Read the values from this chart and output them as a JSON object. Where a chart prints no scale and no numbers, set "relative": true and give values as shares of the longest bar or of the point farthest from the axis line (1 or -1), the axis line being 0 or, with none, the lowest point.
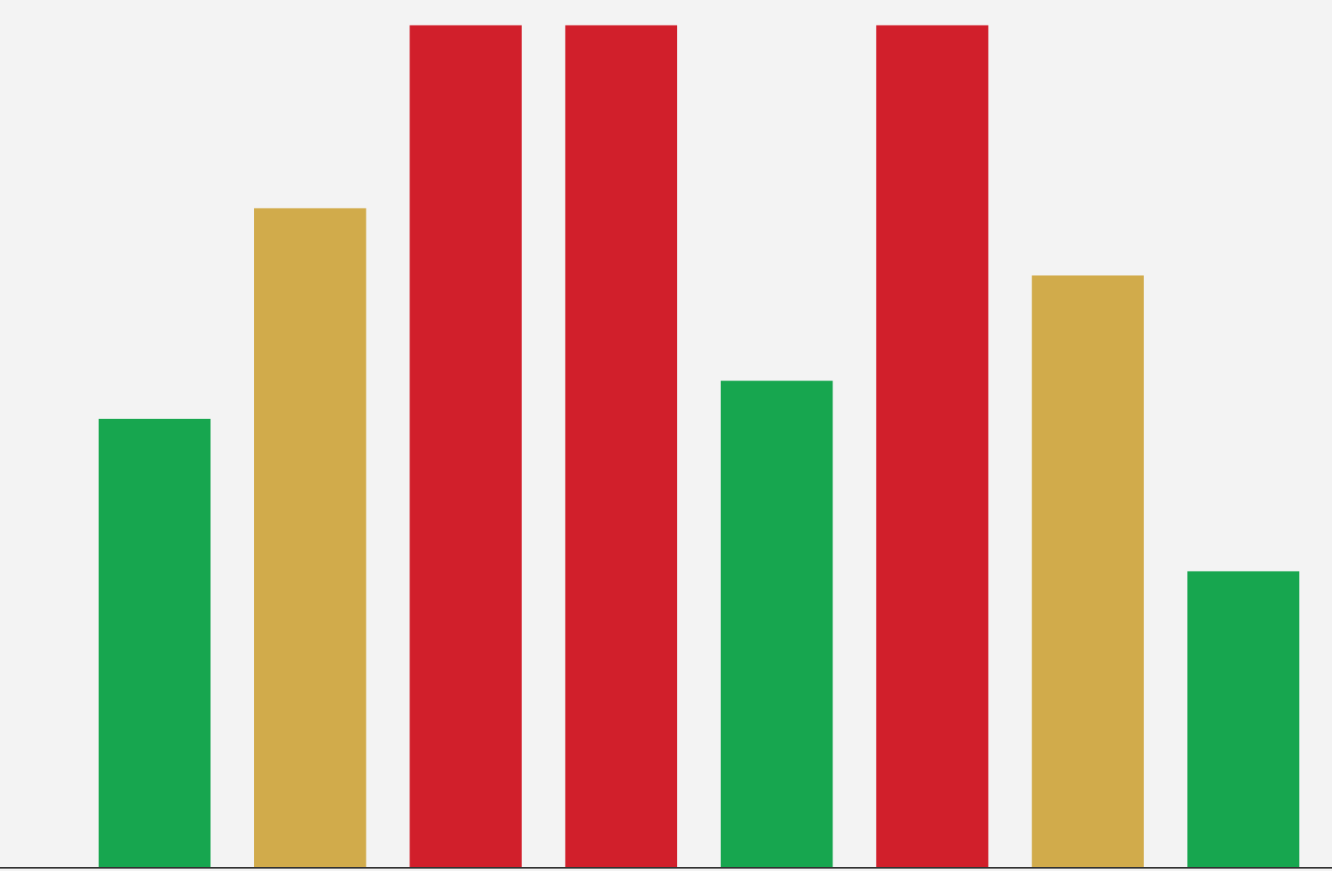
{
  "chart_data": {
    "type": "bar",
    "relative": true,
    "categories": [
      null,
      null,
      null,
      null,
      null,
      null,
      null,
      null
    ],
    "values": [
      0.533,
      0.783,
      1,
      1,
      0.578,
      1,
      0.703,
      0.352
    ],
    "colors": [
      "#17a64f",
      "#d1ab4b",
      "#d11f2b",
      "#d11f2b",
      "#17a64f",
      "#d11f2b",
      "#d1ab4b",
      "#17a64f"
    ],
    "grid": false,
    "legend": false
  }
}
